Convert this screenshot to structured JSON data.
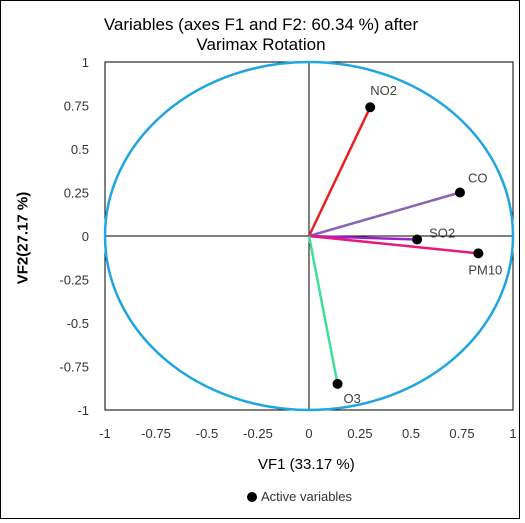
{
  "chart_data": {
    "type": "scatter",
    "title_lines": [
      "Variables (axes F1 and F2: 60.34 %) after",
      "Varimax Rotation"
    ],
    "xlabel": "VF1 (33.17 %)",
    "ylabel": "VF2(27.17 %)",
    "xlim": [
      -1,
      1
    ],
    "ylim": [
      -1,
      1
    ],
    "xticks": [
      "-1",
      "-0.75",
      "-0.5",
      "-0.25",
      "0",
      "0.25",
      "0.5",
      "0.75",
      "1"
    ],
    "yticks": [
      "1",
      "0.75",
      "0.5",
      "0.25",
      "0",
      "-0.25",
      "-0.5",
      "-0.75",
      "-1"
    ],
    "grid": false,
    "legend": {
      "position": "bottom",
      "entries": [
        "Active variables"
      ]
    },
    "circle_color": "#1fa6e0",
    "variables": [
      {
        "name": "NO2",
        "x": 0.3,
        "y": 0.74,
        "color": "#e8201f"
      },
      {
        "name": "CO",
        "x": 0.74,
        "y": 0.25,
        "color": "#8a63b5"
      },
      {
        "name": "SO2",
        "x": 0.53,
        "y": -0.02,
        "color": "#a020c8"
      },
      {
        "name": "PM10",
        "x": 0.83,
        "y": -0.1,
        "color": "#e51a7c"
      },
      {
        "name": "O3",
        "x": 0.14,
        "y": -0.85,
        "color": "#3ddf9a"
      }
    ]
  }
}
